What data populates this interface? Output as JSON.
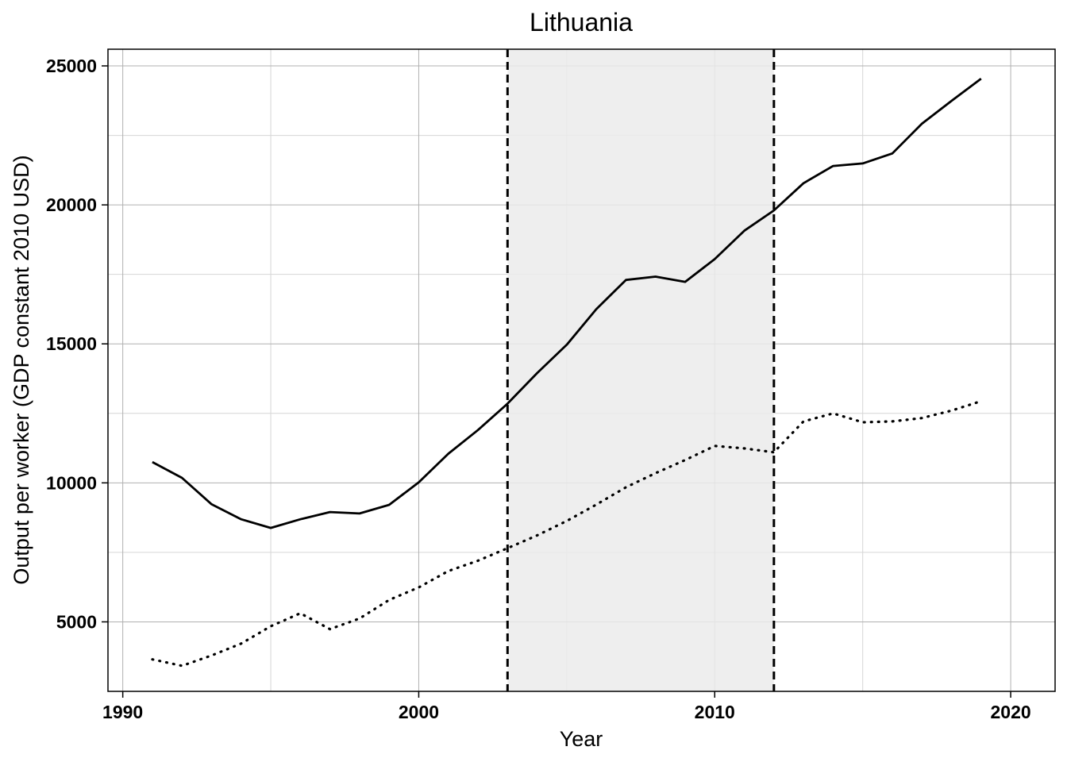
{
  "chart_data": {
    "type": "line",
    "title": "Lithuania",
    "xlabel": "Year",
    "ylabel": "Output per worker (GDP constant 2010 USD)",
    "xlim": [
      1989.5,
      2021.5
    ],
    "ylim": [
      2500,
      25600
    ],
    "x_ticks": [
      1990,
      2000,
      2010,
      2020
    ],
    "y_ticks": [
      5000,
      10000,
      15000,
      20000,
      25000
    ],
    "x_tick_labels": [
      "1990",
      "2000",
      "2010",
      "2020"
    ],
    "y_tick_labels": [
      "5000",
      "10000",
      "15000",
      "20000",
      "25000"
    ],
    "grid": true,
    "legend": "none",
    "shaded_region": {
      "x_start": 2003,
      "x_end": 2012,
      "color": "#ebebeb",
      "border_style": "dashed"
    },
    "x": [
      1991,
      1992,
      1993,
      1994,
      1995,
      1996,
      1997,
      1998,
      1999,
      2000,
      2001,
      2002,
      2003,
      2004,
      2005,
      2006,
      2007,
      2008,
      2009,
      2010,
      2011,
      2012,
      2013,
      2014,
      2015,
      2016,
      2017,
      2018,
      2019
    ],
    "series": [
      {
        "style": "solid",
        "color": "#000000",
        "values": [
          10750,
          10180,
          9230,
          8690,
          8380,
          8690,
          8950,
          8900,
          9210,
          10020,
          11050,
          11900,
          12850,
          13950,
          14970,
          16250,
          17300,
          17420,
          17230,
          18050,
          19070,
          19800,
          20780,
          21400,
          21490,
          21850,
          22920,
          23740,
          24540
        ]
      },
      {
        "style": "dotted",
        "color": "#000000",
        "values": [
          3650,
          3420,
          3790,
          4220,
          4840,
          5310,
          4740,
          5120,
          5790,
          6240,
          6830,
          7200,
          7650,
          8110,
          8630,
          9220,
          9840,
          10350,
          10820,
          11330,
          11240,
          11100,
          12210,
          12500,
          12180,
          12210,
          12330,
          12600,
          12940
        ]
      }
    ]
  }
}
